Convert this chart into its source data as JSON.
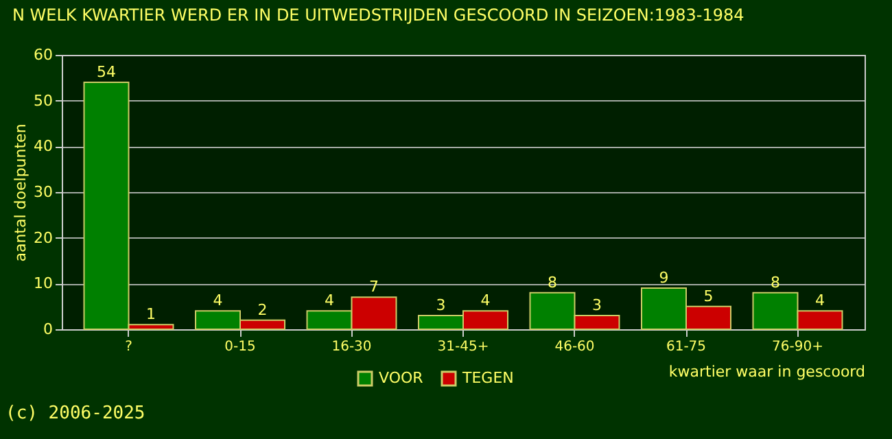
{
  "chart_data": {
    "type": "bar",
    "title": "N WELK KWARTIER WERD ER IN DE UITWEDSTRIJDEN GESCOORD IN SEIZOEN:1983-1984",
    "xlabel": "kwartier waar in gescoord",
    "ylabel": "aantal doelpunten",
    "categories": [
      "?",
      "0-15",
      "16-30",
      "31-45+",
      "46-60",
      "61-75",
      "76-90+"
    ],
    "series": [
      {
        "name": "VOOR",
        "color": "#008000",
        "values": [
          54,
          4,
          4,
          3,
          8,
          9,
          8
        ]
      },
      {
        "name": "TEGEN",
        "color": "#cc0000",
        "values": [
          1,
          2,
          7,
          4,
          3,
          5,
          4
        ]
      }
    ],
    "ylim": [
      0,
      60
    ],
    "yticks": [
      0,
      10,
      20,
      30,
      40,
      50,
      60
    ],
    "grid": "y",
    "legend": "bottom",
    "data_labels": true,
    "annotations": [
      "(c) 2006-2025"
    ]
  }
}
